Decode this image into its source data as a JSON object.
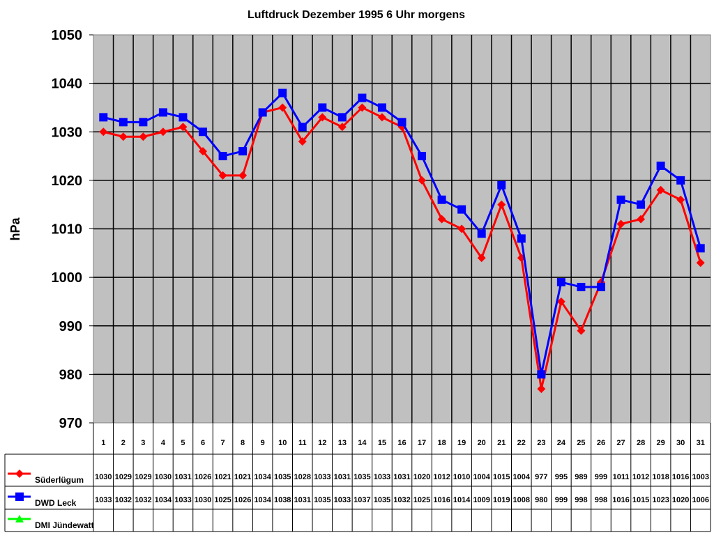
{
  "chart_data": {
    "type": "line",
    "title": "Luftdruck Dezember 1995 6 Uhr morgens",
    "xlabel": "",
    "ylabel": "hPa",
    "ylim": [
      970,
      1050
    ],
    "yticks": [
      970,
      980,
      990,
      1000,
      1010,
      1020,
      1030,
      1040,
      1050
    ],
    "grid": true,
    "legend_position": "data-table-left",
    "categories": [
      "1",
      "2",
      "3",
      "4",
      "5",
      "6",
      "7",
      "8",
      "9",
      "10",
      "11",
      "12",
      "13",
      "14",
      "15",
      "16",
      "17",
      "18",
      "19",
      "20",
      "21",
      "22",
      "23",
      "24",
      "25",
      "26",
      "27",
      "28",
      "29",
      "30",
      "31"
    ],
    "series": [
      {
        "name": "Süderlügum",
        "color": "#ff0000",
        "marker": "diamond",
        "values": [
          1030,
          1029,
          1029,
          1030,
          1031,
          1026,
          1021,
          1021,
          1034,
          1035,
          1028,
          1033,
          1031,
          1035,
          1033,
          1031,
          1020,
          1012,
          1010,
          1004,
          1015,
          1004,
          977,
          995,
          989,
          999,
          1011,
          1012,
          1018,
          1016,
          1003
        ]
      },
      {
        "name": "DWD Leck",
        "color": "#0000ff",
        "marker": "square",
        "values": [
          1033,
          1032,
          1032,
          1034,
          1033,
          1030,
          1025,
          1026,
          1034,
          1038,
          1031,
          1035,
          1033,
          1037,
          1035,
          1032,
          1025,
          1016,
          1014,
          1009,
          1019,
          1008,
          980,
          999,
          998,
          998,
          1016,
          1015,
          1023,
          1020,
          1006
        ]
      },
      {
        "name": "DMI Jündewatt",
        "color": "#00ff00",
        "marker": "triangle",
        "values": [
          null,
          null,
          null,
          null,
          null,
          null,
          null,
          null,
          null,
          null,
          null,
          null,
          null,
          null,
          null,
          null,
          null,
          null,
          null,
          null,
          null,
          null,
          null,
          null,
          null,
          null,
          null,
          null,
          null,
          null,
          null
        ]
      }
    ]
  },
  "colors": {
    "plot_background": "#c0c0c0",
    "grid": "#000000",
    "frame": "#808080"
  }
}
